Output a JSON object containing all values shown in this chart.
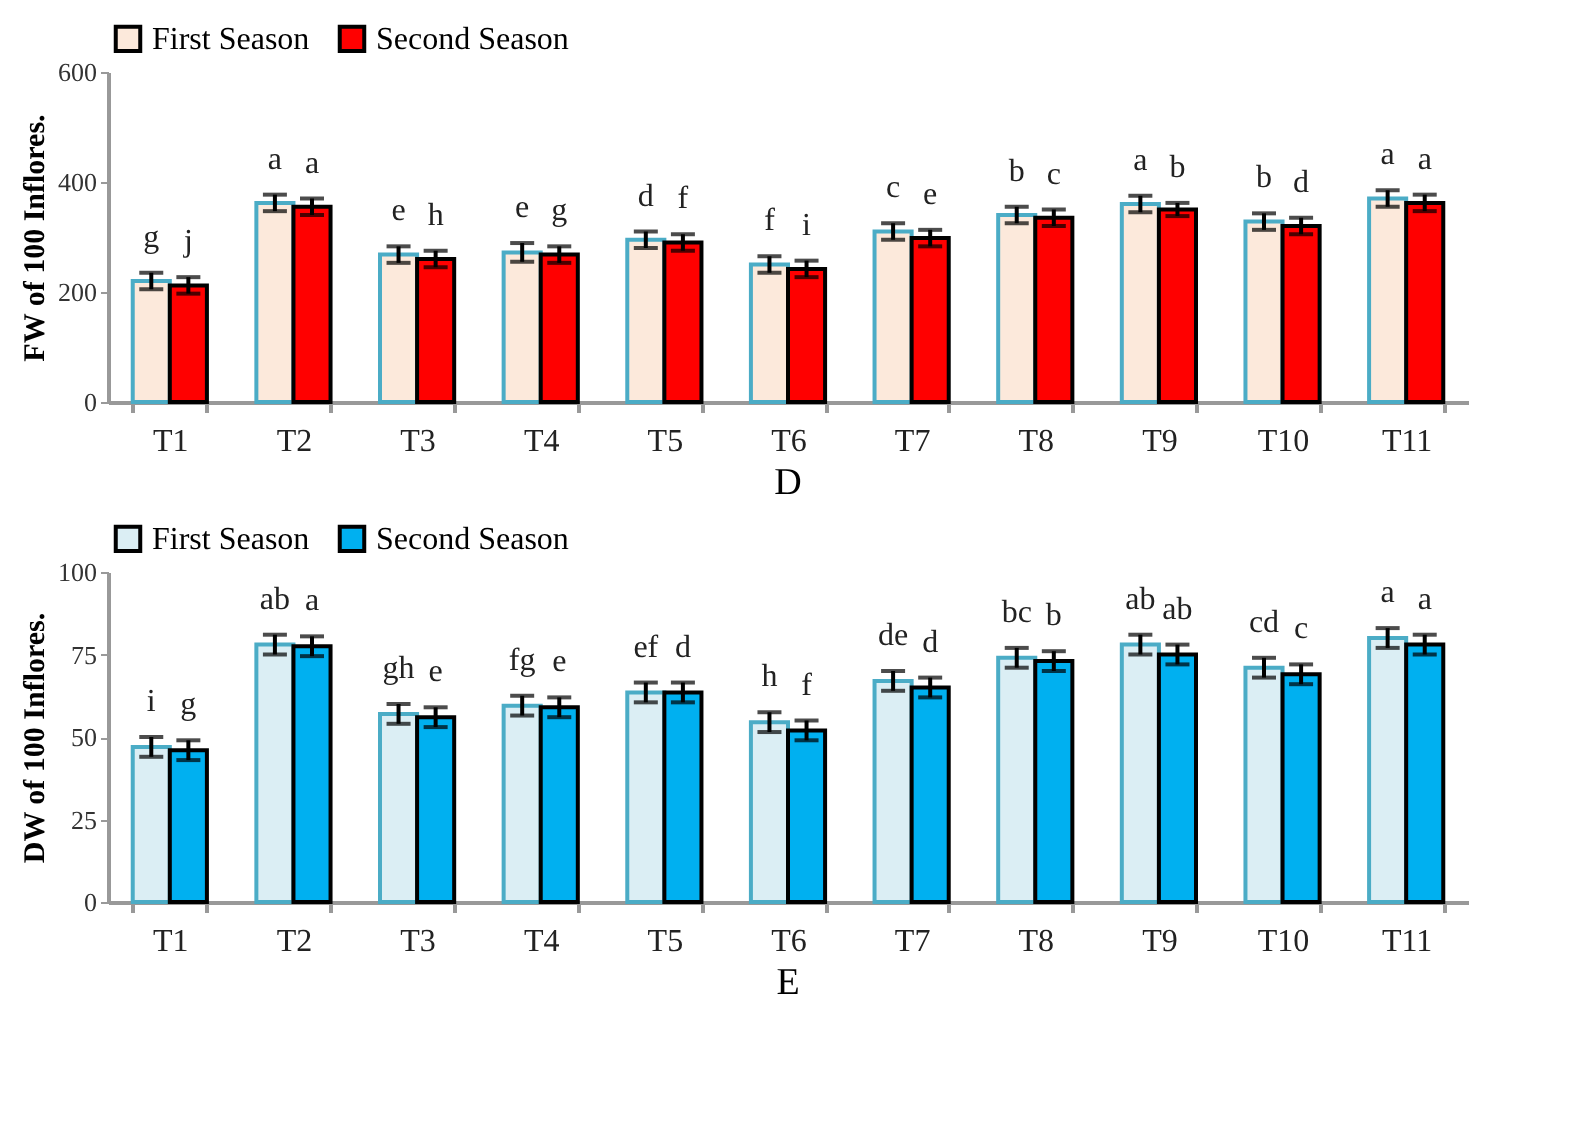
{
  "chart_data": [
    {
      "type": "bar",
      "title": "D",
      "ylabel": "FW of 100 Inflores.",
      "categories": [
        "T1",
        "T2",
        "T3",
        "T4",
        "T5",
        "T6",
        "T7",
        "T8",
        "T9",
        "T10",
        "T11"
      ],
      "ylim": [
        0,
        600
      ],
      "yticks": [
        0,
        200,
        400,
        600
      ],
      "grid": false,
      "legend": "top",
      "series": [
        {
          "name": "First Season",
          "color": "#fce9db",
          "values": [
            220,
            362,
            268,
            272,
            295,
            250,
            310,
            340,
            360,
            328,
            370
          ],
          "errors": [
            15,
            15,
            15,
            17,
            15,
            15,
            15,
            15,
            15,
            15,
            15
          ],
          "value_labels": [
            "g",
            "a",
            "e",
            "e",
            "d",
            "f",
            "c",
            "b",
            "a",
            "b",
            "a"
          ]
        },
        {
          "name": "Second Season",
          "color": "#ff0000",
          "values": [
            212,
            355,
            260,
            268,
            290,
            242,
            298,
            335,
            350,
            320,
            362
          ],
          "errors": [
            15,
            15,
            15,
            15,
            15,
            15,
            15,
            15,
            12,
            15,
            15
          ],
          "value_labels": [
            "j",
            "a",
            "h",
            "g",
            "f",
            "i",
            "e",
            "c",
            "b",
            "d",
            "a"
          ]
        }
      ]
    },
    {
      "type": "bar",
      "title": "E",
      "ylabel": "DW of 100 Inflores.",
      "categories": [
        "T1",
        "T2",
        "T3",
        "T4",
        "T5",
        "T6",
        "T7",
        "T8",
        "T9",
        "T10",
        "T11"
      ],
      "ylim": [
        0,
        100
      ],
      "yticks": [
        0,
        25,
        50,
        75,
        100
      ],
      "grid": false,
      "legend": "top",
      "series": [
        {
          "name": "First Season",
          "color": "#dbeef4",
          "values": [
            47,
            78,
            57,
            59.5,
            63.5,
            54.5,
            67,
            74,
            78,
            71,
            80
          ],
          "errors": [
            3,
            3,
            3,
            3,
            3,
            3,
            3,
            3,
            3,
            3,
            3
          ],
          "value_labels": [
            "i",
            "ab",
            "gh",
            "fg",
            "ef",
            "h",
            "de",
            "bc",
            "ab",
            "cd",
            "a"
          ]
        },
        {
          "name": "Second Season",
          "color": "#00b0f0",
          "values": [
            46,
            77.5,
            56,
            59,
            63.5,
            52,
            65,
            73,
            75,
            69,
            78
          ],
          "errors": [
            3,
            3,
            3,
            3,
            3,
            3,
            3,
            3,
            3,
            3,
            3
          ],
          "value_labels": [
            "g",
            "a",
            "e",
            "e",
            "d",
            "f",
            "d",
            "b",
            "ab",
            "c",
            "a"
          ]
        }
      ]
    }
  ]
}
